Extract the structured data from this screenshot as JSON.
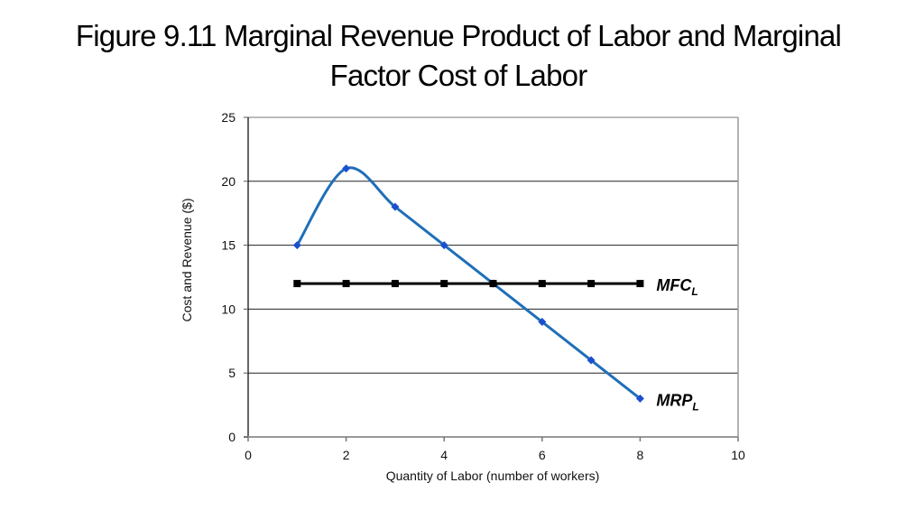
{
  "title": {
    "line1": "Figure 9.11 Marginal Revenue Product of Labor and Marginal",
    "line2": "Factor Cost of Labor"
  },
  "chart_data": {
    "type": "line",
    "title": "Figure 9.11 Marginal Revenue Product of Labor and Marginal Factor Cost of Labor",
    "xlabel": "Quantity of Labor (number of workers)",
    "ylabel": "Cost and Revenue ($)",
    "xlim": [
      0,
      10
    ],
    "ylim": [
      0,
      25
    ],
    "xticks": [
      0,
      2,
      4,
      6,
      8,
      10
    ],
    "yticks": [
      0,
      5,
      10,
      15,
      20,
      25
    ],
    "grid": "horizontal",
    "legend": "inline labels at line ends",
    "x": [
      1,
      2,
      3,
      4,
      5,
      6,
      7,
      8
    ],
    "series": [
      {
        "name": "MRP_L",
        "label_main": "MRP",
        "label_sub": "L",
        "color": "#1f6fb8",
        "marker": "diamond",
        "marker_color": "#1b4fd0",
        "smooth": true,
        "values": [
          15,
          21,
          18,
          15,
          12,
          9,
          6,
          3
        ]
      },
      {
        "name": "MFC_L",
        "label_main": "MFC",
        "label_sub": "L",
        "color": "#000000",
        "marker": "square",
        "marker_color": "#000000",
        "smooth": false,
        "values": [
          12,
          12,
          12,
          12,
          12,
          12,
          12,
          12
        ]
      }
    ]
  }
}
